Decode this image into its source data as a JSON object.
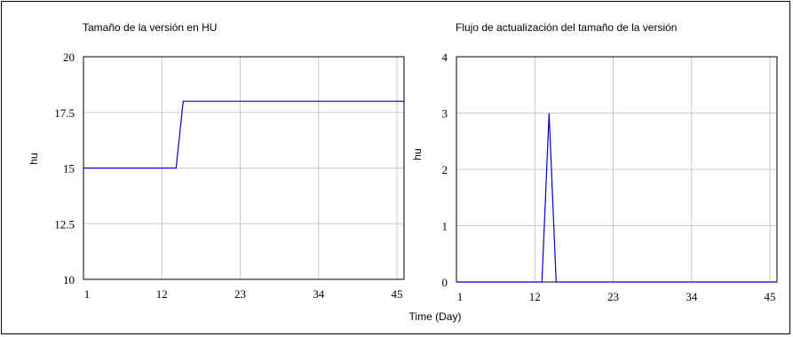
{
  "chart_data": [
    {
      "type": "line",
      "title": "Tamaño de la versión en HU",
      "ylabel": "hu",
      "xlabel": "",
      "xlim": [
        1,
        46
      ],
      "ylim": [
        10,
        20
      ],
      "x_ticks": [
        1,
        12,
        23,
        34,
        45
      ],
      "y_ticks": [
        10,
        12.5,
        15,
        17.5,
        20
      ],
      "y_tick_labels": [
        "10",
        "12.5",
        "15",
        "17.5",
        "20"
      ],
      "grid": true,
      "series": [
        {
          "color": "#0000cc",
          "x": [
            1,
            14,
            15,
            46
          ],
          "y": [
            15,
            15,
            18,
            18
          ]
        }
      ]
    },
    {
      "type": "line",
      "title": "Flujo de actualización del tamaño de la versión",
      "ylabel": "hu",
      "xlabel": "Time (Day)",
      "xlim": [
        1,
        46
      ],
      "ylim": [
        0,
        4
      ],
      "x_ticks": [
        1,
        12,
        23,
        34,
        45
      ],
      "y_ticks": [
        0,
        1,
        2,
        3,
        4
      ],
      "y_tick_labels": [
        "0",
        "1",
        "2",
        "3",
        "4"
      ],
      "grid": true,
      "series": [
        {
          "color": "#0000cc",
          "x": [
            1,
            13,
            14,
            15,
            46
          ],
          "y": [
            0,
            0,
            3,
            0,
            0
          ]
        }
      ]
    }
  ]
}
